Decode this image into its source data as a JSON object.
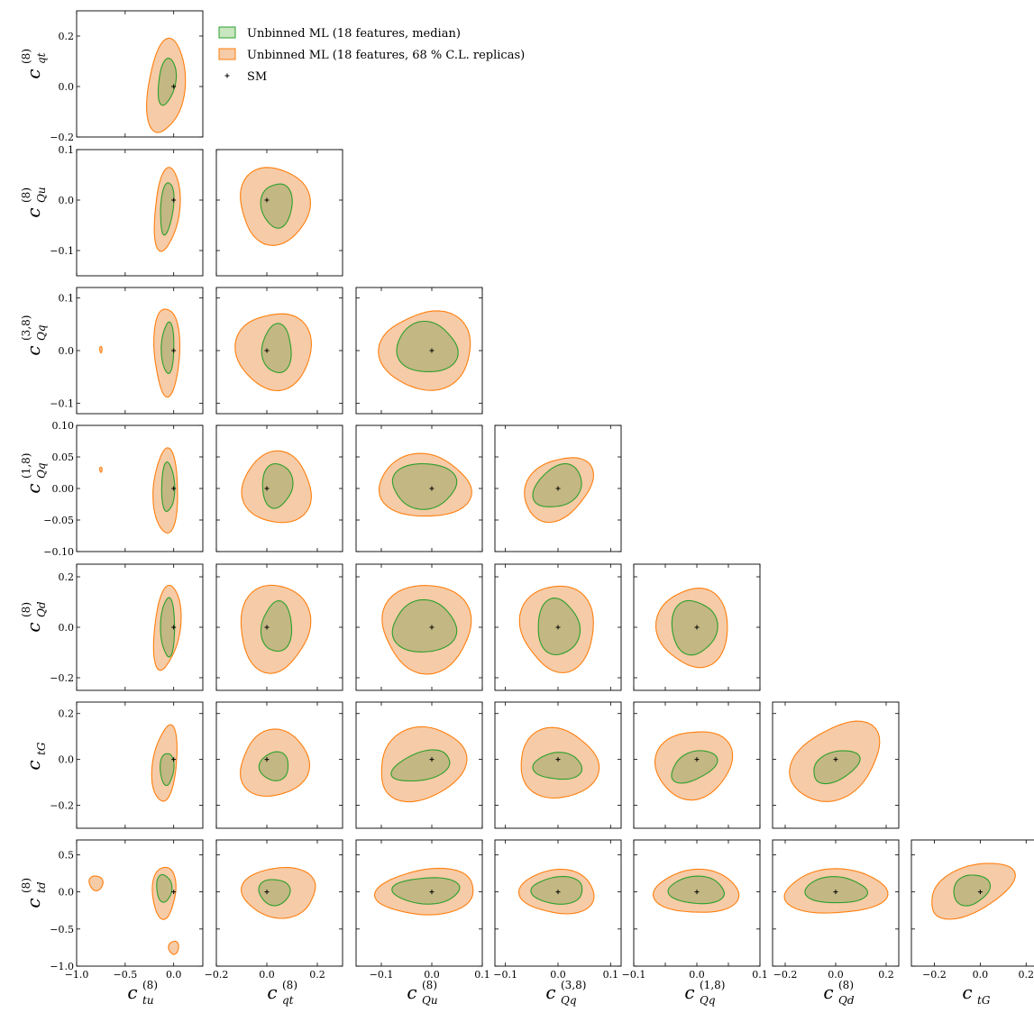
{
  "colors": {
    "green_fill": "#c8e6c0",
    "green_edge": "#2ca02c",
    "orange_fill": "#f6cba7",
    "orange_edge": "#ff7f0e",
    "overlap_fill": "#c3b783",
    "sm_marker": "#000000"
  },
  "legend": {
    "items": [
      {
        "label": "Unbinned ML (18 features, median)",
        "kind": "green"
      },
      {
        "label": "Unbinned ML (18 features, 68 % C.L. replicas)",
        "kind": "orange"
      },
      {
        "label": "SM",
        "kind": "sm"
      }
    ]
  },
  "chart_data": {
    "type": "corner",
    "parameters": [
      {
        "id": "tu8",
        "main": "c",
        "sub": "tu",
        "sup": "(8)",
        "lim": [
          -1.0,
          0.3
        ],
        "ticks": [
          -1.0,
          -0.5,
          0.0
        ],
        "tick_labels": [
          "−1.0",
          "−0.5",
          "0.0"
        ]
      },
      {
        "id": "qt8",
        "main": "c",
        "sub": "qt",
        "sup": "(8)",
        "lim": [
          -0.2,
          0.3
        ],
        "ticks": [
          -0.2,
          0.0,
          0.2
        ],
        "tick_labels": [
          "−0.2",
          "0.0",
          "0.2"
        ]
      },
      {
        "id": "Qu8",
        "main": "c",
        "sub": "Qu",
        "sup": "(8)",
        "lim": [
          -0.15,
          0.1
        ],
        "ticks": [
          -0.1,
          0.0,
          0.1
        ],
        "tick_labels": [
          "−0.1",
          "0.0",
          "0.1"
        ]
      },
      {
        "id": "Qq38",
        "main": "c",
        "sub": "Qq",
        "sup": "(3,8)",
        "lim": [
          -0.12,
          0.12
        ],
        "ticks": [
          -0.1,
          0.0,
          0.1
        ],
        "tick_labels": [
          "−0.1",
          "0.0",
          "0.1"
        ]
      },
      {
        "id": "Qq18",
        "main": "c",
        "sub": "Qq",
        "sup": "(1,8)",
        "lim": [
          -0.1,
          0.1
        ],
        "ticks": [
          -0.1,
          -0.05,
          0.0,
          0.05,
          0.1
        ],
        "tick_labels": [
          "−0.10",
          "−0.05",
          "0.00",
          "0.05",
          "0.10"
        ],
        "x_tick_labels": [
          "−0.1",
          "",
          "0.0",
          "",
          "0.1"
        ]
      },
      {
        "id": "Qd8",
        "main": "c",
        "sub": "Qd",
        "sup": "(8)",
        "lim": [
          -0.25,
          0.25
        ],
        "ticks": [
          -0.2,
          0.0,
          0.2
        ],
        "tick_labels": [
          "−0.2",
          "0.0",
          "0.2"
        ]
      },
      {
        "id": "tG",
        "main": "c",
        "sub": "tG",
        "sup": "",
        "lim": [
          -0.3,
          0.25
        ],
        "ticks": [
          -0.2,
          0.0,
          0.2
        ],
        "tick_labels": [
          "−0.2",
          "0.0",
          "0.2"
        ]
      },
      {
        "id": "td8",
        "main": "c",
        "sub": "td",
        "sup": "(8)",
        "lim": [
          -1.0,
          0.7
        ],
        "ticks": [
          -1.0,
          -0.5,
          0.0,
          0.5
        ],
        "tick_labels": [
          "−1.0",
          "−0.5",
          "0.0",
          "0.5"
        ]
      }
    ],
    "sm_point": [
      0.0,
      0.0
    ],
    "panels": [
      {
        "x": "tu8",
        "y": "qt8",
        "green": {
          "c": [
            -0.07,
            0.02
          ],
          "r": [
            0.09,
            0.09
          ],
          "rot": 0.15
        },
        "orange": {
          "c": [
            -0.08,
            0.0
          ],
          "r": [
            0.19,
            0.185
          ],
          "rot": 0.1
        },
        "extra": []
      },
      {
        "x": "tu8",
        "y": "Qu8",
        "green": {
          "c": [
            -0.07,
            -0.015
          ],
          "r": [
            0.065,
            0.052
          ],
          "rot": 0.1
        },
        "orange": {
          "c": [
            -0.07,
            -0.018
          ],
          "r": [
            0.13,
            0.08
          ],
          "rot": 0.1
        },
        "extra": []
      },
      {
        "x": "qt8",
        "y": "Qu8",
        "green": {
          "c": [
            0.04,
            -0.01
          ],
          "r": [
            0.06,
            0.045
          ],
          "rot": 0
        },
        "orange": {
          "c": [
            0.03,
            -0.01
          ],
          "r": [
            0.14,
            0.075
          ],
          "rot": 0
        },
        "extra": []
      },
      {
        "x": "tu8",
        "y": "Qq38",
        "green": {
          "c": [
            -0.06,
            0.005
          ],
          "r": [
            0.065,
            0.048
          ],
          "rot": 0
        },
        "orange": {
          "c": [
            -0.07,
            0.0
          ],
          "r": [
            0.13,
            0.085
          ],
          "rot": 0
        },
        "extra": [
          {
            "c": [
              -0.75,
              0.002
            ],
            "r": [
              0.012,
              0.006
            ]
          }
        ]
      },
      {
        "x": "qt8",
        "y": "Qq38",
        "green": {
          "c": [
            0.04,
            0.003
          ],
          "r": [
            0.06,
            0.045
          ],
          "rot": 0
        },
        "orange": {
          "c": [
            0.03,
            0.0
          ],
          "r": [
            0.145,
            0.075
          ],
          "rot": 0
        },
        "extra": []
      },
      {
        "x": "Qu8",
        "y": "Qq38",
        "green": {
          "c": [
            -0.01,
            0.005
          ],
          "r": [
            0.06,
            0.048
          ],
          "rot": 0
        },
        "orange": {
          "c": [
            -0.01,
            0.0
          ],
          "r": [
            0.09,
            0.075
          ],
          "rot": 0
        },
        "extra": []
      },
      {
        "x": "tu8",
        "y": "Qq18",
        "green": {
          "c": [
            -0.06,
            0.002
          ],
          "r": [
            0.065,
            0.04
          ],
          "rot": 0
        },
        "orange": {
          "c": [
            -0.08,
            -0.005
          ],
          "r": [
            0.13,
            0.065
          ],
          "rot": 0
        },
        "extra": [
          {
            "c": [
              -0.75,
              0.03
            ],
            "r": [
              0.012,
              0.004
            ]
          }
        ]
      },
      {
        "x": "qt8",
        "y": "Qq18",
        "green": {
          "c": [
            0.04,
            0.005
          ],
          "r": [
            0.06,
            0.035
          ],
          "rot": 0
        },
        "orange": {
          "c": [
            0.04,
            0.0
          ],
          "r": [
            0.14,
            0.055
          ],
          "rot": 0
        },
        "extra": []
      },
      {
        "x": "Qu8",
        "y": "Qq18",
        "green": {
          "c": [
            -0.015,
            0.005
          ],
          "r": [
            0.065,
            0.035
          ],
          "rot": 0
        },
        "orange": {
          "c": [
            -0.015,
            0.003
          ],
          "r": [
            0.09,
            0.05
          ],
          "rot": 0
        },
        "extra": []
      },
      {
        "x": "Qq38",
        "y": "Qq18",
        "green": {
          "c": [
            0.0,
            0.003
          ],
          "r": [
            0.05,
            0.03
          ],
          "rot": -0.7
        },
        "orange": {
          "c": [
            0.0,
            0.0
          ],
          "r": [
            0.07,
            0.045
          ],
          "rot": -0.7
        },
        "extra": []
      },
      {
        "x": "tu8",
        "y": "Qd8",
        "green": {
          "c": [
            -0.06,
            0.0
          ],
          "r": [
            0.07,
            0.12
          ],
          "rot": 0
        },
        "orange": {
          "c": [
            -0.07,
            0.0
          ],
          "r": [
            0.13,
            0.17
          ],
          "rot": 0.1
        },
        "extra": []
      },
      {
        "x": "qt8",
        "y": "Qd8",
        "green": {
          "c": [
            0.04,
            0.0
          ],
          "r": [
            0.06,
            0.1
          ],
          "rot": 0
        },
        "orange": {
          "c": [
            0.03,
            0.0
          ],
          "r": [
            0.14,
            0.17
          ],
          "rot": 0
        },
        "extra": []
      },
      {
        "x": "Qu8",
        "y": "Qd8",
        "green": {
          "c": [
            -0.015,
            0.0
          ],
          "r": [
            0.065,
            0.1
          ],
          "rot": 0
        },
        "orange": {
          "c": [
            -0.01,
            0.0
          ],
          "r": [
            0.09,
            0.17
          ],
          "rot": 0
        },
        "extra": []
      },
      {
        "x": "Qq38",
        "y": "Qd8",
        "green": {
          "c": [
            0.0,
            0.0
          ],
          "r": [
            0.04,
            0.11
          ],
          "rot": 0
        },
        "orange": {
          "c": [
            0.0,
            0.0
          ],
          "r": [
            0.07,
            0.17
          ],
          "rot": 0
        },
        "extra": []
      },
      {
        "x": "Qq18",
        "y": "Qd8",
        "green": {
          "c": [
            -0.005,
            0.0
          ],
          "r": [
            0.035,
            0.11
          ],
          "rot": 0
        },
        "orange": {
          "c": [
            -0.005,
            0.0
          ],
          "r": [
            0.055,
            0.16
          ],
          "rot": 0
        },
        "extra": []
      },
      {
        "x": "tu8",
        "y": "tG",
        "green": {
          "c": [
            -0.07,
            -0.04
          ],
          "r": [
            0.07,
            0.07
          ],
          "rot": 0
        },
        "orange": {
          "c": [
            -0.09,
            -0.02
          ],
          "r": [
            0.12,
            0.17
          ],
          "rot": 0.1
        },
        "extra": []
      },
      {
        "x": "qt8",
        "y": "tG",
        "green": {
          "c": [
            0.03,
            -0.03
          ],
          "r": [
            0.06,
            0.06
          ],
          "rot": -0.3
        },
        "orange": {
          "c": [
            0.03,
            -0.02
          ],
          "r": [
            0.14,
            0.14
          ],
          "rot": -0.3
        },
        "extra": []
      },
      {
        "x": "Qu8",
        "y": "tG",
        "green": {
          "c": [
            -0.02,
            -0.03
          ],
          "r": [
            0.06,
            0.06
          ],
          "rot": -0.3
        },
        "orange": {
          "c": [
            -0.02,
            -0.02
          ],
          "r": [
            0.09,
            0.15
          ],
          "rot": -0.4
        },
        "extra": []
      },
      {
        "x": "Qq38",
        "y": "tG",
        "green": {
          "c": [
            0.0,
            -0.03
          ],
          "r": [
            0.045,
            0.06
          ],
          "rot": 0
        },
        "orange": {
          "c": [
            0.0,
            -0.02
          ],
          "r": [
            0.075,
            0.15
          ],
          "rot": 0
        },
        "extra": []
      },
      {
        "x": "Qq18",
        "y": "tG",
        "green": {
          "c": [
            -0.005,
            -0.03
          ],
          "r": [
            0.038,
            0.06
          ],
          "rot": -0.4
        },
        "orange": {
          "c": [
            -0.005,
            -0.02
          ],
          "r": [
            0.06,
            0.15
          ],
          "rot": -0.5
        },
        "extra": []
      },
      {
        "x": "Qd8",
        "y": "tG",
        "green": {
          "c": [
            0.0,
            -0.03
          ],
          "r": [
            0.1,
            0.06
          ],
          "rot": -0.4
        },
        "orange": {
          "c": [
            0.0,
            -0.01
          ],
          "r": [
            0.19,
            0.15
          ],
          "rot": -0.6
        },
        "extra": []
      },
      {
        "x": "tu8",
        "y": "td8",
        "green": {
          "c": [
            -0.1,
            0.05
          ],
          "r": [
            0.08,
            0.18
          ],
          "rot": 0
        },
        "orange": {
          "c": [
            -0.1,
            0.0
          ],
          "r": [
            0.12,
            0.35
          ],
          "rot": 0
        },
        "extra": [
          {
            "c": [
              -0.8,
              0.12
            ],
            "r": [
              0.07,
              0.1
            ]
          },
          {
            "c": [
              0.0,
              -0.75
            ],
            "r": [
              0.05,
              0.09
            ]
          }
        ]
      },
      {
        "x": "qt8",
        "y": "td8",
        "green": {
          "c": [
            0.03,
            0.0
          ],
          "r": [
            0.06,
            0.18
          ],
          "rot": 0
        },
        "orange": {
          "c": [
            0.05,
            0.0
          ],
          "r": [
            0.15,
            0.33
          ],
          "rot": 0
        },
        "extra": []
      },
      {
        "x": "Qu8",
        "y": "td8",
        "green": {
          "c": [
            -0.01,
            0.02
          ],
          "r": [
            0.065,
            0.18
          ],
          "rot": 0
        },
        "orange": {
          "c": [
            -0.01,
            0.0
          ],
          "r": [
            0.1,
            0.3
          ],
          "rot": -0.1
        },
        "extra": []
      },
      {
        "x": "Qq38",
        "y": "td8",
        "green": {
          "c": [
            0.0,
            0.02
          ],
          "r": [
            0.05,
            0.18
          ],
          "rot": 0
        },
        "orange": {
          "c": [
            0.0,
            0.0
          ],
          "r": [
            0.07,
            0.3
          ],
          "rot": 0
        },
        "extra": []
      },
      {
        "x": "Qq18",
        "y": "td8",
        "green": {
          "c": [
            0.0,
            0.02
          ],
          "r": [
            0.045,
            0.18
          ],
          "rot": 0
        },
        "orange": {
          "c": [
            0.0,
            0.0
          ],
          "r": [
            0.065,
            0.3
          ],
          "rot": 0
        },
        "extra": []
      },
      {
        "x": "Qd8",
        "y": "td8",
        "green": {
          "c": [
            0.0,
            0.02
          ],
          "r": [
            0.12,
            0.18
          ],
          "rot": 0
        },
        "orange": {
          "c": [
            0.0,
            0.0
          ],
          "r": [
            0.2,
            0.3
          ],
          "rot": 0
        },
        "extra": []
      },
      {
        "x": "tG",
        "y": "td8",
        "green": {
          "c": [
            -0.04,
            0.03
          ],
          "r": [
            0.08,
            0.2
          ],
          "rot": -0.35
        },
        "orange": {
          "c": [
            -0.04,
            0.03
          ],
          "r": [
            0.2,
            0.3
          ],
          "rot": -0.4
        },
        "extra": []
      }
    ]
  }
}
